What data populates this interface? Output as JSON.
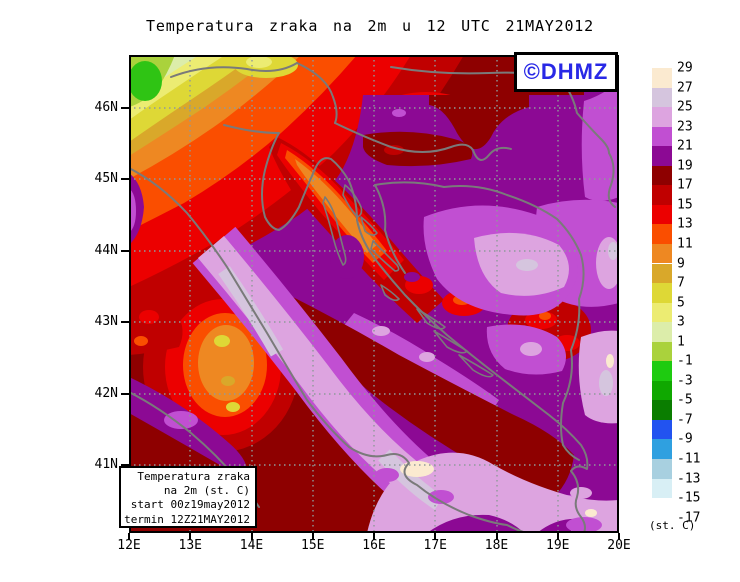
{
  "title": "Temperatura zraka na 2m u 12 UTC 21MAY2012",
  "logo": {
    "text": "©DHMZ",
    "color": "#2828e6"
  },
  "legend_box": {
    "line1": "Temperatura zraka",
    "line2": "na 2m (st. C)",
    "line3": "start 00z19may2012",
    "line4": "termin 12Z21MAY2012"
  },
  "axes": {
    "lat_labels": [
      "46N",
      "45N",
      "44N",
      "43N",
      "42N",
      "41N"
    ],
    "lon_labels": [
      "12E",
      "13E",
      "14E",
      "15E",
      "16E",
      "17E",
      "18E",
      "19E",
      "20E"
    ]
  },
  "colorbar": {
    "unit_label": "(st. C)",
    "top_label": "29",
    "blocks": [
      {
        "label": "27",
        "color": "#fbead0"
      },
      {
        "label": "25",
        "color": "#d5c5de"
      },
      {
        "label": "23",
        "color": "#dda4e0"
      },
      {
        "label": "21",
        "color": "#c14fd2"
      },
      {
        "label": "19",
        "color": "#8c0994"
      },
      {
        "label": "17",
        "color": "#8e0000"
      },
      {
        "label": "15",
        "color": "#c00000"
      },
      {
        "label": "13",
        "color": "#ec0000"
      },
      {
        "label": "11",
        "color": "#fa4e00"
      },
      {
        "label": "9",
        "color": "#ee8822"
      },
      {
        "label": "7",
        "color": "#d9a82a"
      },
      {
        "label": "5",
        "color": "#ded836"
      },
      {
        "label": "3",
        "color": "#ecec72"
      },
      {
        "label": "1",
        "color": "#dcedaa"
      },
      {
        "label": "-1",
        "color": "#aad23c"
      },
      {
        "label": "-3",
        "color": "#1ecb10"
      },
      {
        "label": "-5",
        "color": "#0fa800"
      },
      {
        "label": "-7",
        "color": "#0a7d00"
      },
      {
        "label": "-9",
        "color": "#2253f0"
      },
      {
        "label": "-11",
        "color": "#2fa0e0"
      },
      {
        "label": "-13",
        "color": "#a8d0e0"
      },
      {
        "label": "-15",
        "color": "#d8eff5"
      },
      {
        "label": "-17",
        "color": "#ffffff"
      }
    ]
  },
  "chart_data": {
    "type": "heatmap",
    "title": "Temperatura zraka na 2m u 12 UTC 21MAY2012",
    "unit": "st. C",
    "x_ticks": [
      "12E",
      "13E",
      "14E",
      "15E",
      "16E",
      "17E",
      "18E",
      "19E",
      "20E"
    ],
    "y_ticks": [
      "46N",
      "45N",
      "44N",
      "43N",
      "42N",
      "41N"
    ],
    "lon_range": [
      12,
      20
    ],
    "lat_range": [
      40.1,
      46.7
    ],
    "levels_c": [
      29,
      27,
      25,
      23,
      21,
      19,
      17,
      15,
      13,
      11,
      9,
      7,
      5,
      3,
      1,
      -1,
      -3,
      -5,
      -7,
      -9,
      -11,
      -13,
      -15,
      -17
    ],
    "palette": [
      "#fbead0",
      "#d5c5de",
      "#dda4e0",
      "#c14fd2",
      "#8c0994",
      "#8e0000",
      "#c00000",
      "#ec0000",
      "#fa4e00",
      "#ee8822",
      "#d9a82a",
      "#ded836",
      "#ecec72",
      "#dcedaa",
      "#aad23c",
      "#1ecb10",
      "#0fa800",
      "#0a7d00",
      "#2253f0",
      "#2fa0e0",
      "#a8d0e0",
      "#d8eff5",
      "#ffffff"
    ],
    "grid": "dotted, 1 deg spacing",
    "notable_regions": [
      {
        "area": "Alps NW corner (12E,46.5N)",
        "approx_temp_c": "-1 to 7"
      },
      {
        "area": "NW diagonal band Slovenia/Kvarner",
        "approx_temp_c": "9 to 15"
      },
      {
        "area": "Istria and N Croatia interior",
        "approx_temp_c": "17 to 19"
      },
      {
        "area": "NE Slavonia / Hungary border and Bosnia highlands",
        "approx_temp_c": "19 to 25"
      },
      {
        "area": "Central Italy hot spot (13.5E,42.5N)",
        "approx_temp_c": "9 to 13"
      },
      {
        "area": "Adriatic band along Italian coast",
        "approx_temp_c": "23 to 29"
      },
      {
        "area": "South Adriatic / Dalmatian hinterland",
        "approx_temp_c": "17 to 19"
      }
    ]
  }
}
